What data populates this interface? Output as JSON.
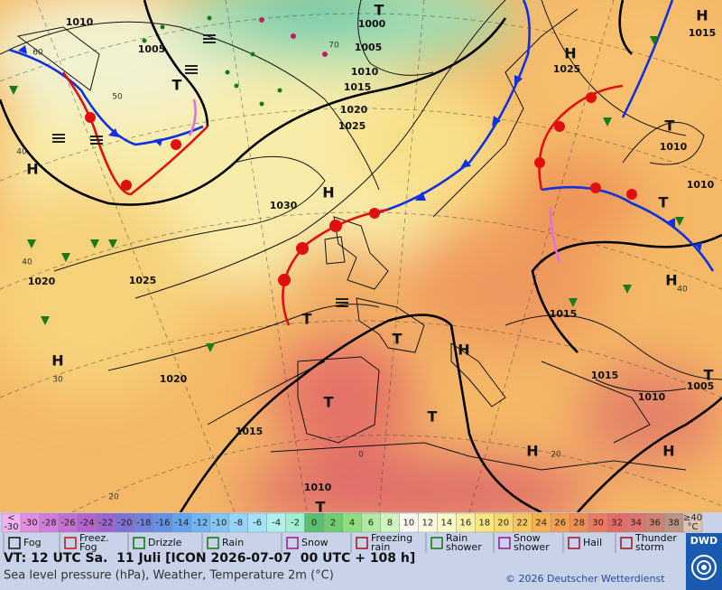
{
  "map": {
    "pressure_labels": [
      "1010",
      "1005",
      "1000",
      "1005",
      "1010",
      "1015",
      "1020",
      "1025",
      "1025",
      "1015",
      "1010",
      "1010",
      "1030",
      "1025",
      "1020",
      "1020",
      "1015",
      "1015",
      "1015",
      "1010",
      "1005",
      "1010"
    ],
    "centers": [
      "H",
      "T",
      "T",
      "H",
      "H",
      "T",
      "T",
      "H",
      "T",
      "T",
      "H",
      "T",
      "T",
      "H",
      "H",
      "H",
      "T",
      "T",
      "H"
    ],
    "grid_labels": [
      "60",
      "50",
      "40",
      "40",
      "30",
      "20",
      "40",
      "20",
      "0",
      "70"
    ]
  },
  "legend": {
    "scale_start": [
      "<",
      "-30"
    ],
    "scale": [
      {
        "label": "-30",
        "color": "#e08ee0"
      },
      {
        "label": "-28",
        "color": "#d27ed8"
      },
      {
        "label": "-26",
        "color": "#c270d0"
      },
      {
        "label": "-24",
        "color": "#b064cc"
      },
      {
        "label": "-22",
        "color": "#9c66cc"
      },
      {
        "label": "-20",
        "color": "#7e72d2"
      },
      {
        "label": "-18",
        "color": "#6e82da"
      },
      {
        "label": "-16",
        "color": "#6492e2"
      },
      {
        "label": "-14",
        "color": "#66a4ea"
      },
      {
        "label": "-12",
        "color": "#74b4f0"
      },
      {
        "label": "-10",
        "color": "#84c4f2"
      },
      {
        "label": "-8",
        "color": "#94d4f8"
      },
      {
        "label": "-6",
        "color": "#a4e2f8"
      },
      {
        "label": "-4",
        "color": "#b2f0ee"
      },
      {
        "label": "-2",
        "color": "#a2eed2"
      },
      {
        "label": "0",
        "color": "#5cbc70"
      },
      {
        "label": "2",
        "color": "#70cc70"
      },
      {
        "label": "4",
        "color": "#90dc80"
      },
      {
        "label": "6",
        "color": "#aeeaa0"
      },
      {
        "label": "8",
        "color": "#d0f4c0"
      },
      {
        "label": "10",
        "color": "#fafaf2"
      },
      {
        "label": "12",
        "color": "#fafae0"
      },
      {
        "label": "14",
        "color": "#fafac8"
      },
      {
        "label": "16",
        "color": "#f8f0a4"
      },
      {
        "label": "18",
        "color": "#f8e680"
      },
      {
        "label": "20",
        "color": "#f8d870"
      },
      {
        "label": "22",
        "color": "#f8c660"
      },
      {
        "label": "24",
        "color": "#f6b050"
      },
      {
        "label": "26",
        "color": "#f4a052"
      },
      {
        "label": "28",
        "color": "#ee8e54"
      },
      {
        "label": "30",
        "color": "#ec7a60"
      },
      {
        "label": "32",
        "color": "#e46a68"
      },
      {
        "label": "34",
        "color": "#dc7272"
      },
      {
        "label": "36",
        "color": "#cc8272"
      },
      {
        "label": "38",
        "color": "#bc9284"
      }
    ],
    "scale_start_color": "#f0b2f0",
    "scale_end": [
      "≥40",
      "°C"
    ],
    "scale_end_color": "#dcc4b4",
    "weather": [
      [
        "Fog"
      ],
      [
        "Freez.",
        "Fog"
      ],
      [
        "Drizzle"
      ],
      [
        "Rain"
      ],
      [
        "Snow"
      ],
      [
        "Freezing",
        "rain"
      ],
      [
        "Rain",
        "shower"
      ],
      [
        "Snow",
        "shower"
      ],
      [
        "Hail"
      ],
      [
        "Thunder",
        "storm"
      ]
    ]
  },
  "footer": {
    "valid_time": "VT: 12 UTC Sa.  11 Juli [ICON 2026-07-07  00 UTC + 108 h]",
    "subtitle": "Sea level pressure (hPa), Weather, Temperature 2m (°C)",
    "copyright": "© 2026 Deutscher Wetterdienst",
    "logo": "DWD"
  }
}
